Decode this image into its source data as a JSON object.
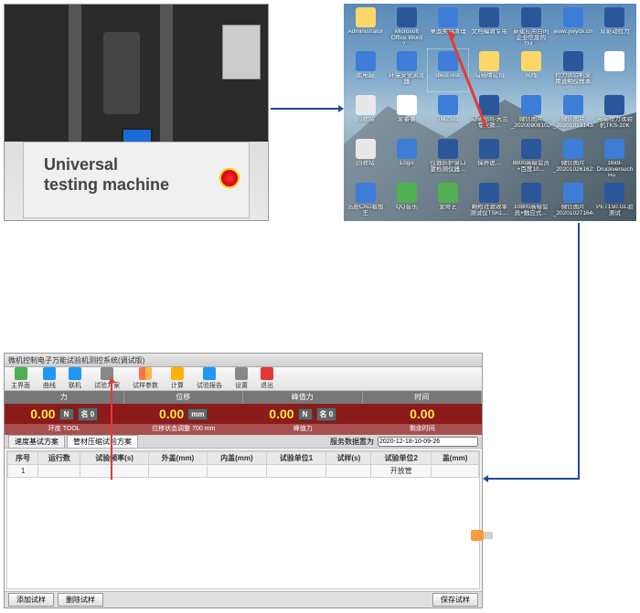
{
  "machine": {
    "label_line1": "Universal",
    "label_line2": "testing machine",
    "label_font_size_pt": 18,
    "label_color": "#444444",
    "estop_color": "#ff3333"
  },
  "desktop": {
    "background_gradient": [
      "#5a8ab8",
      "#7aa5c8",
      "#a8c5d8",
      "#8fa8b0",
      "#6d8a98"
    ],
    "icons": [
      {
        "label": "Administrator",
        "type": "folder"
      },
      {
        "label": "Microsoft Office Word 2…",
        "type": "word"
      },
      {
        "label": "桌面类别清理",
        "type": "blue"
      },
      {
        "label": "文档编辑专用",
        "type": "word"
      },
      {
        "label": "新建应用目的企业信息的TM…",
        "type": "word"
      },
      {
        "label": "www.ywydx.cn",
        "type": "blue"
      },
      {
        "label": "双驱动拉力",
        "type": "word"
      },
      {
        "label": "此电脑",
        "type": "blue"
      },
      {
        "label": "环保安全浏览器",
        "type": "blue"
      },
      {
        "label": "ibestTest",
        "type": "blue"
      },
      {
        "label": "勾晓晴公司",
        "type": "folder"
      },
      {
        "label": "热线",
        "type": "folder"
      },
      {
        "label": "拉力试验机使用说明仪样本",
        "type": "word"
      },
      {
        "label": "",
        "type": "gray"
      },
      {
        "label": "回收站",
        "type": "recycle"
      },
      {
        "label": "爱番番",
        "type": "red"
      },
      {
        "label": "TM2101",
        "type": "blue"
      },
      {
        "label": "勾晓合同-天兰专业款…",
        "type": "word"
      },
      {
        "label": "微信图片_20200908102637",
        "type": "blue"
      },
      {
        "label": "微信图片_20201013143840",
        "type": "blue"
      },
      {
        "label": "电脑拉力试验机TKS-10K",
        "type": "word"
      },
      {
        "label": "回收站",
        "type": "recycle"
      },
      {
        "label": "Logo",
        "type": "blue"
      },
      {
        "label": "仪器防护窗口罩检测仪器…",
        "type": "word"
      },
      {
        "label": "保养说…",
        "type": "word"
      },
      {
        "label": "8800高级会员+百度10…",
        "type": "word"
      },
      {
        "label": "微信图片_20201026162347",
        "type": "blue"
      },
      {
        "label": "16x9-Druckversuch Ha…",
        "type": "blue"
      },
      {
        "label": "浩辰CAD看图王",
        "type": "blue"
      },
      {
        "label": "QQ音乐",
        "type": "green"
      },
      {
        "label": "爱奇艺",
        "type": "green"
      },
      {
        "label": "颗粒过滤效率测试仪TSKL…",
        "type": "word"
      },
      {
        "label": "10800高级会员+触应式…",
        "type": "word"
      },
      {
        "label": "微信图片_20201027164403",
        "type": "blue"
      },
      {
        "label": "PET150.GL验测试",
        "type": "word"
      }
    ],
    "highlight_index": 9,
    "arrow_color": "#e53935"
  },
  "software": {
    "title": "微机控制电子万能试验机测控系统(调试版)",
    "toolbar": [
      {
        "label": "主界面",
        "color": "green"
      },
      {
        "label": "曲线",
        "color": "blue"
      },
      {
        "label": "联机",
        "color": "blue"
      },
      {
        "label": "试验方案",
        "color": "gray"
      },
      {
        "label": "试样参数",
        "color": "arrow"
      },
      {
        "label": "计算",
        "color": "yel"
      },
      {
        "label": "试验报告",
        "color": "blue"
      },
      {
        "label": "设置",
        "color": "gray"
      },
      {
        "label": "退出",
        "color": "red"
      }
    ],
    "readout_headers": [
      "力",
      "位移",
      "峰值力",
      "时间"
    ],
    "readouts": [
      {
        "value": "0.00",
        "unit": "N",
        "tare": "名 0"
      },
      {
        "value": "0.00",
        "unit": "mm",
        "tare": "-"
      },
      {
        "value": "0.00",
        "unit": "N",
        "tare": "名 0"
      },
      {
        "value": "0.00",
        "unit": "",
        "tare": "-"
      }
    ],
    "readout_subs": [
      "环度 TOOL",
      "位移状态调整 700 mm",
      "峰值力",
      "剩余时间"
    ],
    "readout_value_color": "#ffeb3b",
    "readout_bg": "#8b1a1a",
    "tabs": [
      {
        "label": "速度基试方案",
        "active": false
      },
      {
        "label": "管材压缩试验方案",
        "active": true
      }
    ],
    "server_label": "服务数据置为",
    "server_value": "2020-12-18-10-09-26",
    "table": {
      "columns": [
        "序号",
        "运行数",
        "试验频率(s)",
        "外盖(mm)",
        "内盖(mm)",
        "试验单位1",
        "试样(s)",
        "试验单位2",
        "盖(mm)"
      ],
      "rows": [
        [
          "1",
          "",
          "",
          "",
          "",
          "",
          "",
          "开放管",
          ""
        ]
      ]
    },
    "footer_buttons_left": [
      "添加试样",
      "删除试样"
    ],
    "footer_buttons_right": [
      "保存试样"
    ],
    "annotation_target": "联机"
  },
  "connectors": {
    "color": "#1a4b9c",
    "stroke_width": 2
  }
}
